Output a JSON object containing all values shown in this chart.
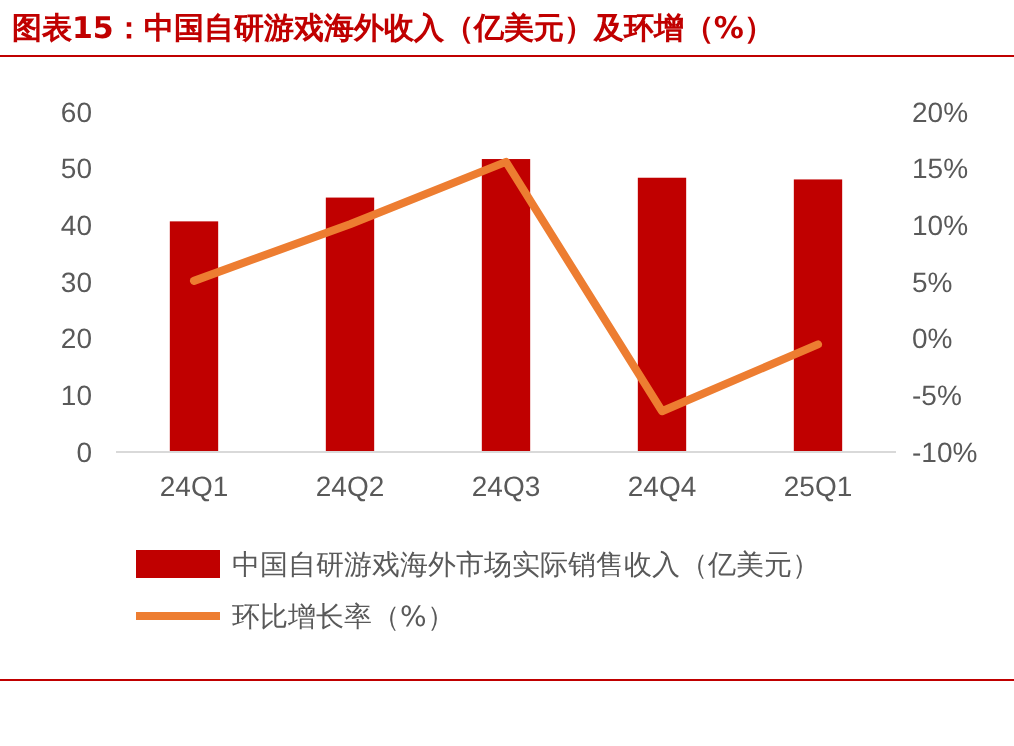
{
  "chart_data": {
    "type": "bar",
    "title": "图表15：中国自研游戏海外收入（亿美元）及环增（%）",
    "categories": [
      "24Q1",
      "24Q2",
      "24Q3",
      "24Q4",
      "25Q1"
    ],
    "series": [
      {
        "name": "中国自研游戏海外市场实际销售收入（亿美元）",
        "color": "#c00000",
        "values": [
          40.7,
          44.9,
          51.7,
          48.4,
          48.1
        ]
      },
      {
        "name": "环比增长率（%）",
        "type": "line",
        "axis": "y2",
        "color": "#ed7d31",
        "values": [
          5.1,
          10.1,
          15.6,
          -6.4,
          -0.5
        ]
      }
    ],
    "ylim": [
      0,
      60
    ],
    "yticks": [
      0,
      10,
      20,
      30,
      40,
      50,
      60
    ],
    "y2lim": [
      -10,
      20
    ],
    "y2ticks": [
      {
        "value": -10,
        "label": "-10%"
      },
      {
        "value": -5,
        "label": "-5%"
      },
      {
        "value": 0,
        "label": "0%"
      },
      {
        "value": 5,
        "label": "5%"
      },
      {
        "value": 10,
        "label": "10%"
      },
      {
        "value": 15,
        "label": "15%"
      },
      {
        "value": 20,
        "label": "20%"
      }
    ],
    "legend": "bottom",
    "grid": false
  }
}
